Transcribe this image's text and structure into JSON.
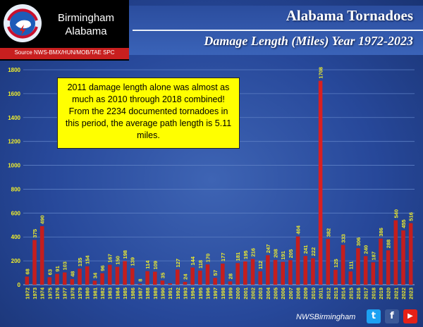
{
  "brand": {
    "line1": "Birmingham",
    "line2": "Alabama",
    "seal_text": "NATIONAL WEATHER SERVICE",
    "source": "Source NWS-BMX/HUN/MOB/TAE SPC"
  },
  "header": {
    "title": "Alabama Tornadoes",
    "subtitle": "Damage Length (Miles) Year 1972-2023"
  },
  "callout": {
    "text": "2011 damage length alone was almost as much as 2010 through 2018 combined! From the 2234 documented tornadoes in this period, the average path length is 5.11 miles."
  },
  "footer": {
    "handle": "NWSBirmingham",
    "social": [
      "twitter-icon",
      "facebook-icon",
      "youtube-icon"
    ]
  },
  "colors": {
    "bar": "#c41e1e",
    "bar_highlight": "#d92020",
    "value_label": "#f2ef2a",
    "tick_label": "#f2ef2a",
    "grid": "#5d7fc4",
    "callout_bg": "#ffff00"
  },
  "chart_data": {
    "type": "bar",
    "title": "Alabama Tornadoes",
    "subtitle": "Damage Length (Miles) Year 1972-2023",
    "xlabel": "",
    "ylabel": "",
    "ylim": [
      0,
      1800
    ],
    "yticks": [
      0,
      200,
      400,
      600,
      800,
      1000,
      1200,
      1400,
      1600,
      1800
    ],
    "grid": true,
    "categories": [
      "1972",
      "1973",
      "1974",
      "1975",
      "1976",
      "1977",
      "1978",
      "1979",
      "1980",
      "1981",
      "1982",
      "1983",
      "1984",
      "1985",
      "1986",
      "1987",
      "1988",
      "1989",
      "1990",
      "1991",
      "1992",
      "1993",
      "1994",
      "1995",
      "1996",
      "1997",
      "1998",
      "1999",
      "2000",
      "2001",
      "2002",
      "2003",
      "2004",
      "2005",
      "2006",
      "2007",
      "2008",
      "2009",
      "2010",
      "2011",
      "2012",
      "2013",
      "2014",
      "2015",
      "2016",
      "2017",
      "2018",
      "2019",
      "2020",
      "2021",
      "2022",
      "2023"
    ],
    "values": [
      68,
      375,
      490,
      63,
      91,
      103,
      48,
      135,
      154,
      34,
      96,
      167,
      150,
      198,
      139,
      8,
      114,
      109,
      35,
      12,
      127,
      24,
      144,
      118,
      170,
      57,
      177,
      28,
      181,
      195,
      216,
      112,
      247,
      208,
      191,
      205,
      404,
      241,
      222,
      1708,
      382,
      125,
      333,
      111,
      306,
      240,
      187,
      386,
      288,
      540,
      455,
      516
    ],
    "value_labels": [
      "68",
      "375",
      "490",
      "63",
      "91",
      "103",
      "48",
      "135",
      "154",
      "34",
      "96",
      "167",
      "150",
      "198",
      "139",
      "8",
      "114",
      "109",
      "35",
      "",
      "127",
      "24",
      "144",
      "118",
      "170",
      "57",
      "177",
      "28",
      "181",
      "195",
      "216",
      "112",
      "247",
      "208",
      "191",
      "205",
      "404",
      "241",
      "222",
      "1708",
      "382",
      "125",
      "333",
      "111",
      "306",
      "240",
      "187",
      "386",
      "288",
      "540",
      "455",
      "516"
    ]
  }
}
